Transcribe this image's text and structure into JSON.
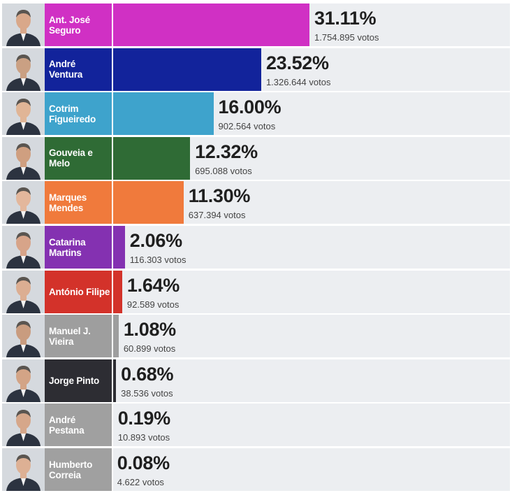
{
  "chart_data": {
    "type": "bar",
    "orientation": "horizontal",
    "title": "",
    "xlabel": "",
    "ylabel": "",
    "grid": false,
    "legend": "none",
    "value_unit": "%",
    "xlim": [
      0,
      31.11
    ],
    "candidates": [
      {
        "name": "Ant. José Seguro",
        "percent": 31.11,
        "percent_label": "31.11%",
        "votes": "1.754.895 votos",
        "color": "#d030c4"
      },
      {
        "name": "André Ventura",
        "percent": 23.52,
        "percent_label": "23.52%",
        "votes": "1.326.644 votos",
        "color": "#12239b"
      },
      {
        "name": "Cotrim Figueiredo",
        "percent": 16.0,
        "percent_label": "16.00%",
        "votes": "902.564 votos",
        "color": "#3ea3cc"
      },
      {
        "name": "Gouveia e Melo",
        "percent": 12.32,
        "percent_label": "12.32%",
        "votes": "695.088 votos",
        "color": "#2f6b35"
      },
      {
        "name": "Marques Mendes",
        "percent": 11.3,
        "percent_label": "11.30%",
        "votes": "637.394 votos",
        "color": "#f07a3c"
      },
      {
        "name": "Catarina Martins",
        "percent": 2.06,
        "percent_label": "2.06%",
        "votes": "116.303 votos",
        "color": "#8431b1"
      },
      {
        "name": "António Filipe",
        "percent": 1.64,
        "percent_label": "1.64%",
        "votes": "92.589 votos",
        "color": "#d3322a"
      },
      {
        "name": "Manuel J. Vieira",
        "percent": 1.08,
        "percent_label": "1.08%",
        "votes": "60.899 votos",
        "color": "#9e9e9e"
      },
      {
        "name": "Jorge Pinto",
        "percent": 0.68,
        "percent_label": "0.68%",
        "votes": "38.536 votos",
        "color": "#2d2d33"
      },
      {
        "name": "André Pestana",
        "percent": 0.19,
        "percent_label": "0.19%",
        "votes": "10.893 votos",
        "color": "#a0a0a0"
      },
      {
        "name": "Humberto Correia",
        "percent": 0.08,
        "percent_label": "0.08%",
        "votes": "4.622 votos",
        "color": "#a0a0a0"
      }
    ]
  }
}
